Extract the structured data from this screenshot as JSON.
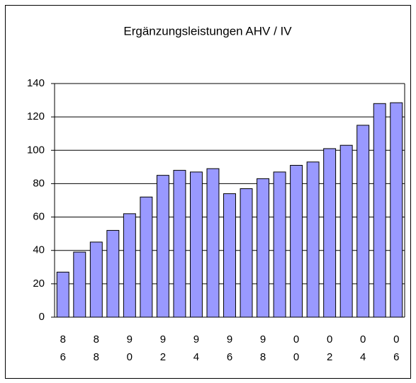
{
  "chart_data": {
    "type": "bar",
    "title": "Ergänzungsleistungen AHV / IV",
    "categories": [
      "86",
      null,
      "88",
      null,
      "90",
      null,
      "92",
      null,
      "94",
      null,
      "96",
      null,
      "98",
      null,
      "00",
      null,
      "02",
      null,
      "04",
      null,
      "06"
    ],
    "values": [
      27,
      39,
      45,
      52,
      62,
      72,
      85,
      88,
      87,
      89,
      74,
      77,
      83,
      87,
      91,
      93,
      101,
      103,
      115,
      128,
      128.5
    ],
    "color": "#9999ff",
    "ylim": [
      0,
      140
    ],
    "yticks": [
      0,
      20,
      40,
      60,
      80,
      100,
      120,
      140
    ],
    "grid": true
  }
}
